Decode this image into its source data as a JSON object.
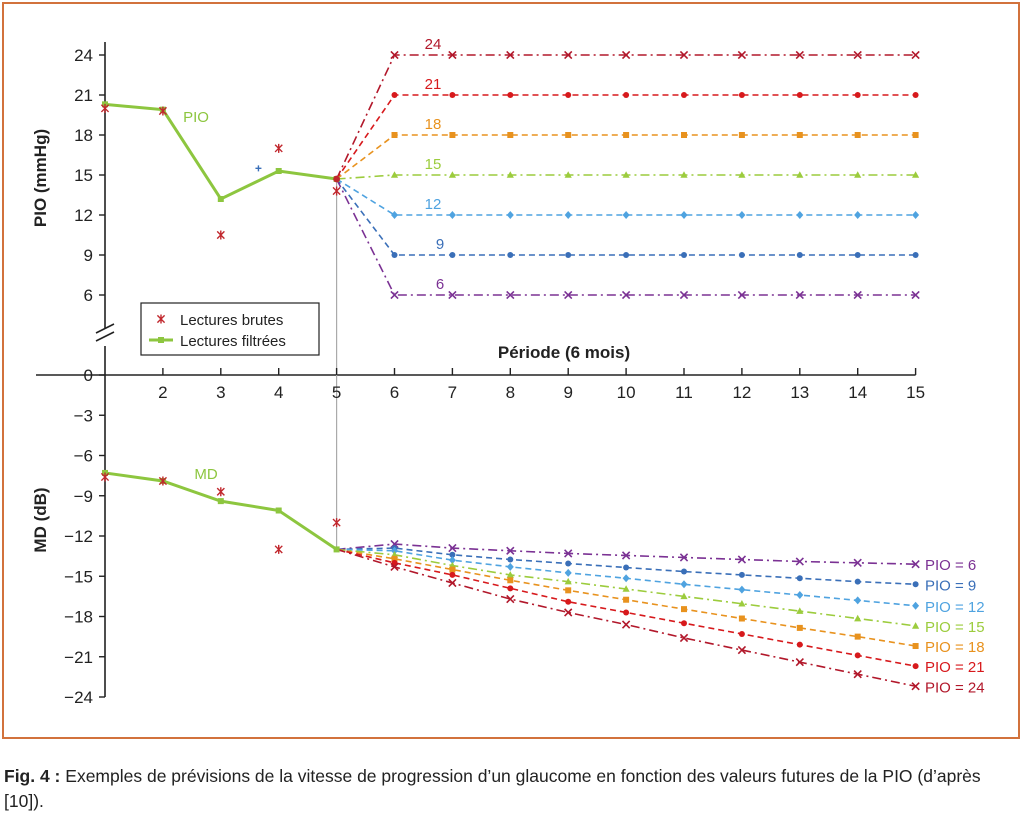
{
  "caption": {
    "label": "Fig. 4 :",
    "text": "Exemples de prévisions de la vitesse de progression d’un glaucome en fonction des valeurs futures de la PIO (d’après [10])."
  },
  "colors": {
    "frame": "#d2723c",
    "raw": "#c1272d",
    "filtered": "#8dc63f",
    "p6": "#7b3294",
    "p9": "#3a6fb8",
    "p12": "#4fa3e0",
    "p15": "#9ccc3d",
    "p18": "#e8921e",
    "p21": "#d7191c",
    "p24": "#b2182b"
  },
  "chart_data": [
    {
      "type": "line",
      "ylabel": "PIO (mmHg)",
      "xlabel": "Période (6 mois)",
      "ylim": [
        6,
        24
      ],
      "yticks": [
        24,
        21,
        18,
        15,
        12,
        9,
        6
      ],
      "x_ticks": [
        2,
        3,
        4,
        5,
        6,
        7,
        8,
        9,
        10,
        11,
        12,
        13,
        14,
        15
      ],
      "series_label": "PIO",
      "legend": [
        "Lectures brutes",
        "Lectures filtrées"
      ],
      "raw": [
        [
          1,
          20
        ],
        [
          2,
          19.8
        ],
        [
          3,
          10.5
        ],
        [
          3.65,
          15.5
        ],
        [
          4,
          17
        ],
        [
          5,
          13.8
        ]
      ],
      "filtered": [
        [
          1,
          20.3
        ],
        [
          2,
          19.9
        ],
        [
          3,
          13.2
        ],
        [
          4,
          15.3
        ],
        [
          5,
          14.7
        ]
      ],
      "forecasts": [
        {
          "label": "24",
          "value": 24,
          "color_key": "p24",
          "marker": "x",
          "dash": "dashdot"
        },
        {
          "label": "21",
          "value": 21,
          "color_key": "p21",
          "marker": "dot",
          "dash": "dash"
        },
        {
          "label": "18",
          "value": 18,
          "color_key": "p18",
          "marker": "square",
          "dash": "dash"
        },
        {
          "label": "15",
          "value": 15,
          "color_key": "p15",
          "marker": "triangle",
          "dash": "dashdot"
        },
        {
          "label": "12",
          "value": 12,
          "color_key": "p12",
          "marker": "diamond",
          "dash": "dash"
        },
        {
          "label": "9",
          "value": 9,
          "color_key": "p9",
          "marker": "dot",
          "dash": "dash"
        },
        {
          "label": "6",
          "value": 6,
          "color_key": "p6",
          "marker": "x",
          "dash": "dashdot"
        }
      ]
    },
    {
      "type": "line",
      "ylabel": "MD (dB)",
      "xlim": [
        1,
        15
      ],
      "x_ticks": [
        2,
        3,
        4,
        5,
        6,
        7,
        8,
        9,
        10,
        11,
        12,
        13,
        14,
        15
      ],
      "ylim": [
        -24,
        0
      ],
      "yticks": [
        0,
        -3,
        -6,
        -9,
        -12,
        -15,
        -18,
        -21,
        -24
      ],
      "series_label": "MD",
      "raw": [
        [
          1,
          -7.6
        ],
        [
          2,
          -7.9
        ],
        [
          3,
          -8.7
        ],
        [
          4,
          -13
        ],
        [
          5,
          -11
        ]
      ],
      "filtered": [
        [
          1,
          -7.3
        ],
        [
          2,
          -7.9
        ],
        [
          3,
          -9.4
        ],
        [
          4,
          -10.1
        ],
        [
          5,
          -13
        ]
      ],
      "forecasts": [
        {
          "label": "PIO = 6",
          "start": [
            5,
            -13
          ],
          "values": [
            -12.6,
            -12.9,
            -13.1,
            -13.3,
            -13.45,
            -13.6,
            -13.75,
            -13.9,
            -14.0,
            -14.1
          ],
          "color_key": "p6",
          "marker": "x",
          "dash": "dashdot"
        },
        {
          "label": "PIO = 9",
          "start": [
            5,
            -13
          ],
          "values": [
            -12.9,
            -13.4,
            -13.75,
            -14.05,
            -14.35,
            -14.65,
            -14.9,
            -15.15,
            -15.4,
            -15.6
          ],
          "color_key": "p9",
          "marker": "dot",
          "dash": "dash"
        },
        {
          "label": "PIO = 12",
          "start": [
            5,
            -13
          ],
          "values": [
            -13.1,
            -13.8,
            -14.3,
            -14.75,
            -15.15,
            -15.6,
            -16.0,
            -16.4,
            -16.8,
            -17.2
          ],
          "color_key": "p12",
          "marker": "diamond",
          "dash": "dash"
        },
        {
          "label": "PIO = 15",
          "start": [
            5,
            -13
          ],
          "values": [
            -13.4,
            -14.2,
            -14.9,
            -15.4,
            -15.95,
            -16.5,
            -17.05,
            -17.6,
            -18.15,
            -18.7
          ],
          "color_key": "p15",
          "marker": "triangle",
          "dash": "dashdot"
        },
        {
          "label": "PIO = 18",
          "start": [
            5,
            -13
          ],
          "values": [
            -13.7,
            -14.5,
            -15.3,
            -16.05,
            -16.75,
            -17.45,
            -18.15,
            -18.85,
            -19.5,
            -20.2
          ],
          "color_key": "p18",
          "marker": "square",
          "dash": "dash"
        },
        {
          "label": "PIO = 21",
          "start": [
            5,
            -13
          ],
          "values": [
            -14.0,
            -14.9,
            -15.9,
            -16.9,
            -17.7,
            -18.5,
            -19.3,
            -20.1,
            -20.9,
            -21.7
          ],
          "color_key": "p21",
          "marker": "dot",
          "dash": "dash"
        },
        {
          "label": "PIO = 24",
          "start": [
            5,
            -13
          ],
          "values": [
            -14.3,
            -15.5,
            -16.7,
            -17.7,
            -18.6,
            -19.6,
            -20.5,
            -21.4,
            -22.3,
            -23.2
          ],
          "color_key": "p24",
          "marker": "x",
          "dash": "dashdot"
        }
      ]
    }
  ]
}
